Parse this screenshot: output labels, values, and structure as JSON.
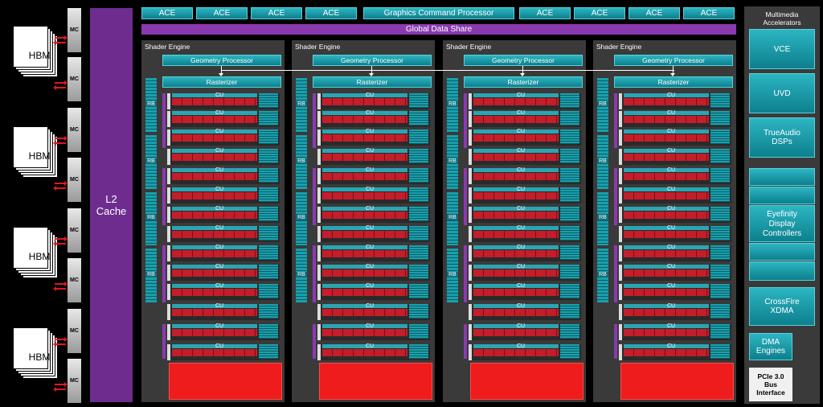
{
  "hbm": {
    "label": "HBM",
    "stacks": 4
  },
  "mc": {
    "label": "MC",
    "count": 8
  },
  "l2": {
    "line1": "L2",
    "line2": "Cache"
  },
  "top_bar": {
    "ace_label": "ACE",
    "gcp_label": "Graphics Command Processor"
  },
  "gds": {
    "label": "Global Data Share"
  },
  "shader_engine": {
    "title": "Shader Engine",
    "geometry": "Geometry Processor",
    "rasterizer": "Rasterizer",
    "cu_label": "CU",
    "rb_label": "RB",
    "count": 4,
    "cus_per_engine": 14
  },
  "right_panel": {
    "multimedia": {
      "line1": "Multimedia",
      "line2": "Accelerators"
    },
    "vce": "VCE",
    "uvd": "UVD",
    "trueaudio": {
      "line1": "TrueAudio",
      "line2": "DSPs"
    },
    "eyefinity": {
      "line1": "Eyefinity",
      "line2": "Display",
      "line3": "Controllers"
    },
    "crossfire": {
      "line1": "CrossFire",
      "line2": "XDMA"
    },
    "dma": {
      "line1": "DMA",
      "line2": "Engines"
    },
    "pcie": {
      "line1": "PCIe 3.0",
      "line2": "Bus",
      "line3": "Interface"
    }
  },
  "colors": {
    "teal": "#128997",
    "purple": "#6e2d8e",
    "red": "#ee1c1c",
    "panel": "#3a3a3a"
  }
}
